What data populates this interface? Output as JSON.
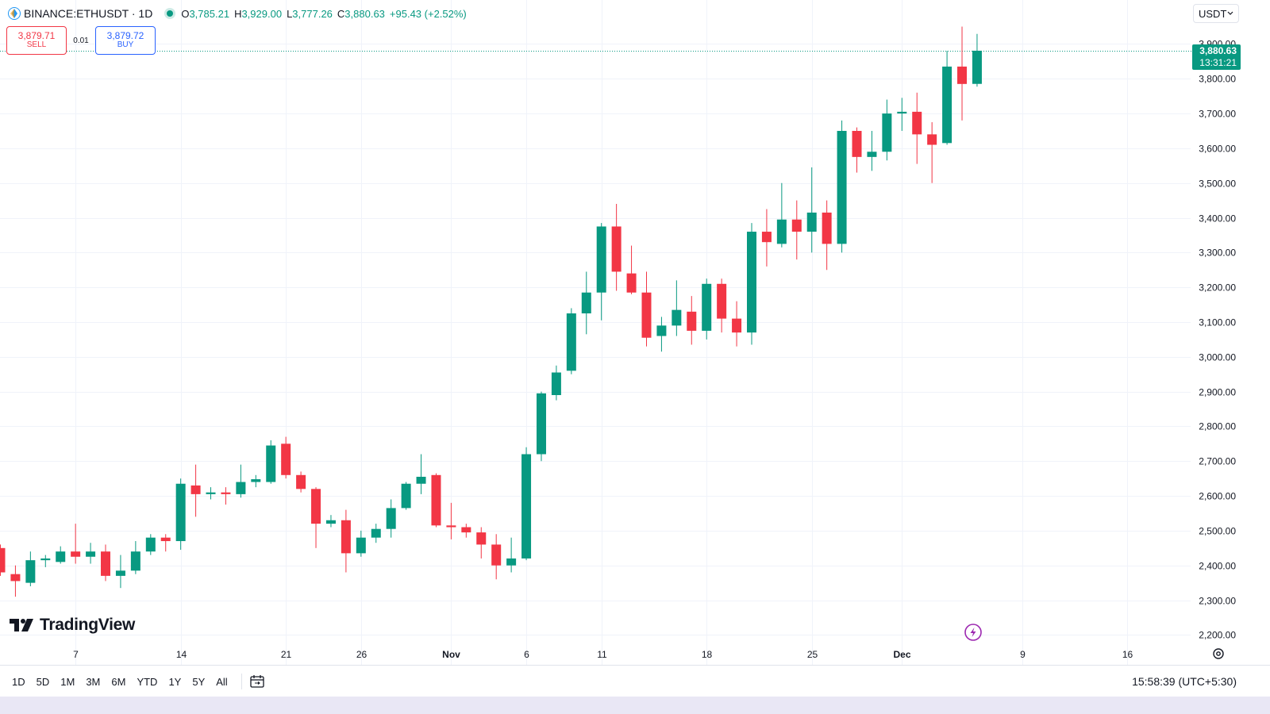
{
  "header": {
    "symbol": "BINANCE:ETHUSDT · 1D",
    "o_label": "O",
    "o_value": "3,785.21",
    "h_label": "H",
    "h_value": "3,929.00",
    "l_label": "L",
    "l_value": "3,777.26",
    "c_label": "C",
    "c_value": "3,880.63",
    "change": "+95.43 (+2.52%)"
  },
  "trade": {
    "sell_price": "3,879.71",
    "sell_label": "SELL",
    "spread": "0.01",
    "buy_price": "3,879.72",
    "buy_label": "BUY"
  },
  "currency_select": "USDT",
  "price_tag": {
    "price": "3,880.63",
    "countdown": "13:31:21"
  },
  "brand": "TradingView",
  "bottom": {
    "ranges": [
      "1D",
      "5D",
      "1M",
      "3M",
      "6M",
      "YTD",
      "1Y",
      "5Y",
      "All"
    ],
    "clock": "15:58:39 (UTC+5:30)"
  },
  "colors": {
    "up": "#089981",
    "down": "#f23645",
    "grid": "#f0f3fa",
    "text": "#131722",
    "accent": "#2962ff"
  },
  "icons": {
    "exchange": "binance-logo-icon",
    "status": "market-open-dot-icon",
    "calendar": "go-to-date-icon",
    "settings": "gear-icon",
    "lightning": "lightning-icon",
    "chevron": "chevron-down-icon"
  },
  "chart_data": {
    "type": "candlestick",
    "title": "BINANCE:ETHUSDT · 1D",
    "x_ticks": [
      {
        "label": "7",
        "index": 5
      },
      {
        "label": "14",
        "index": 12
      },
      {
        "label": "21",
        "index": 19
      },
      {
        "label": "26",
        "index": 24
      },
      {
        "label": "Nov",
        "index": 30
      },
      {
        "label": "6",
        "index": 35
      },
      {
        "label": "11",
        "index": 40
      },
      {
        "label": "18",
        "index": 47
      },
      {
        "label": "25",
        "index": 54
      },
      {
        "label": "Dec",
        "index": 60
      },
      {
        "label": "9",
        "index": 68
      },
      {
        "label": "16",
        "index": 75
      }
    ],
    "y_ticks": [
      2200,
      2300,
      2400,
      2500,
      2600,
      2700,
      2800,
      2900,
      3000,
      3100,
      3200,
      3300,
      3400,
      3500,
      3600,
      3700,
      3800,
      3900
    ],
    "y_tick_labels": [
      "2,200.00",
      "2,300.00",
      "2,400.00",
      "2,500.00",
      "2,600.00",
      "2,700.00",
      "2,800.00",
      "2,900.00",
      "3,000.00",
      "3,100.00",
      "3,200.00",
      "3,300.00",
      "3,400.00",
      "3,500.00",
      "3,600.00",
      "3,700.00",
      "3,800.00",
      "3,900.00"
    ],
    "ylim": [
      2170,
      3990
    ],
    "last_price": 3880.63,
    "candles": [
      {
        "o": 2450,
        "h": 2460,
        "l": 2370,
        "c": 2380
      },
      {
        "o": 2375,
        "h": 2400,
        "l": 2310,
        "c": 2355
      },
      {
        "o": 2350,
        "h": 2440,
        "l": 2340,
        "c": 2415
      },
      {
        "o": 2415,
        "h": 2430,
        "l": 2395,
        "c": 2420
      },
      {
        "o": 2410,
        "h": 2455,
        "l": 2405,
        "c": 2440
      },
      {
        "o": 2440,
        "h": 2520,
        "l": 2405,
        "c": 2425
      },
      {
        "o": 2425,
        "h": 2465,
        "l": 2405,
        "c": 2440
      },
      {
        "o": 2440,
        "h": 2460,
        "l": 2355,
        "c": 2370
      },
      {
        "o": 2370,
        "h": 2430,
        "l": 2335,
        "c": 2385
      },
      {
        "o": 2385,
        "h": 2470,
        "l": 2375,
        "c": 2440
      },
      {
        "o": 2440,
        "h": 2490,
        "l": 2430,
        "c": 2480
      },
      {
        "o": 2480,
        "h": 2490,
        "l": 2440,
        "c": 2470
      },
      {
        "o": 2470,
        "h": 2650,
        "l": 2445,
        "c": 2635
      },
      {
        "o": 2630,
        "h": 2690,
        "l": 2540,
        "c": 2605
      },
      {
        "o": 2605,
        "h": 2625,
        "l": 2590,
        "c": 2610
      },
      {
        "o": 2610,
        "h": 2625,
        "l": 2575,
        "c": 2605
      },
      {
        "o": 2605,
        "h": 2690,
        "l": 2595,
        "c": 2640
      },
      {
        "o": 2640,
        "h": 2660,
        "l": 2625,
        "c": 2648
      },
      {
        "o": 2640,
        "h": 2760,
        "l": 2635,
        "c": 2745
      },
      {
        "o": 2750,
        "h": 2770,
        "l": 2650,
        "c": 2660
      },
      {
        "o": 2660,
        "h": 2670,
        "l": 2610,
        "c": 2620
      },
      {
        "o": 2620,
        "h": 2625,
        "l": 2450,
        "c": 2520
      },
      {
        "o": 2520,
        "h": 2545,
        "l": 2510,
        "c": 2530
      },
      {
        "o": 2530,
        "h": 2560,
        "l": 2380,
        "c": 2435
      },
      {
        "o": 2435,
        "h": 2500,
        "l": 2425,
        "c": 2480
      },
      {
        "o": 2480,
        "h": 2520,
        "l": 2465,
        "c": 2505
      },
      {
        "o": 2505,
        "h": 2590,
        "l": 2480,
        "c": 2565
      },
      {
        "o": 2565,
        "h": 2640,
        "l": 2560,
        "c": 2635
      },
      {
        "o": 2635,
        "h": 2720,
        "l": 2605,
        "c": 2655
      },
      {
        "o": 2660,
        "h": 2665,
        "l": 2510,
        "c": 2515
      },
      {
        "o": 2515,
        "h": 2580,
        "l": 2475,
        "c": 2510
      },
      {
        "o": 2510,
        "h": 2520,
        "l": 2480,
        "c": 2495
      },
      {
        "o": 2495,
        "h": 2510,
        "l": 2420,
        "c": 2460
      },
      {
        "o": 2460,
        "h": 2490,
        "l": 2360,
        "c": 2400
      },
      {
        "o": 2400,
        "h": 2480,
        "l": 2380,
        "c": 2420
      },
      {
        "o": 2420,
        "h": 2740,
        "l": 2415,
        "c": 2720
      },
      {
        "o": 2720,
        "h": 2900,
        "l": 2700,
        "c": 2895
      },
      {
        "o": 2890,
        "h": 2975,
        "l": 2875,
        "c": 2955
      },
      {
        "o": 2960,
        "h": 3140,
        "l": 2950,
        "c": 3125
      },
      {
        "o": 3125,
        "h": 3245,
        "l": 3065,
        "c": 3185
      },
      {
        "o": 3185,
        "h": 3385,
        "l": 3105,
        "c": 3375
      },
      {
        "o": 3375,
        "h": 3440,
        "l": 3190,
        "c": 3245
      },
      {
        "o": 3240,
        "h": 3320,
        "l": 3180,
        "c": 3185
      },
      {
        "o": 3185,
        "h": 3245,
        "l": 3030,
        "c": 3055
      },
      {
        "o": 3060,
        "h": 3115,
        "l": 3015,
        "c": 3090
      },
      {
        "o": 3090,
        "h": 3220,
        "l": 3060,
        "c": 3135
      },
      {
        "o": 3130,
        "h": 3175,
        "l": 3035,
        "c": 3075
      },
      {
        "o": 3075,
        "h": 3225,
        "l": 3050,
        "c": 3210
      },
      {
        "o": 3210,
        "h": 3225,
        "l": 3070,
        "c": 3110
      },
      {
        "o": 3110,
        "h": 3160,
        "l": 3030,
        "c": 3070
      },
      {
        "o": 3070,
        "h": 3385,
        "l": 3035,
        "c": 3360
      },
      {
        "o": 3360,
        "h": 3425,
        "l": 3260,
        "c": 3330
      },
      {
        "o": 3325,
        "h": 3500,
        "l": 3315,
        "c": 3395
      },
      {
        "o": 3395,
        "h": 3450,
        "l": 3280,
        "c": 3360
      },
      {
        "o": 3360,
        "h": 3545,
        "l": 3300,
        "c": 3415
      },
      {
        "o": 3415,
        "h": 3450,
        "l": 3250,
        "c": 3325
      },
      {
        "o": 3325,
        "h": 3680,
        "l": 3300,
        "c": 3650
      },
      {
        "o": 3650,
        "h": 3660,
        "l": 3530,
        "c": 3575
      },
      {
        "o": 3575,
        "h": 3650,
        "l": 3535,
        "c": 3590
      },
      {
        "o": 3590,
        "h": 3740,
        "l": 3565,
        "c": 3700
      },
      {
        "o": 3700,
        "h": 3745,
        "l": 3650,
        "c": 3705
      },
      {
        "o": 3705,
        "h": 3760,
        "l": 3555,
        "c": 3640
      },
      {
        "o": 3640,
        "h": 3675,
        "l": 3500,
        "c": 3610
      },
      {
        "o": 3615,
        "h": 3880,
        "l": 3610,
        "c": 3835
      },
      {
        "o": 3835,
        "h": 3950,
        "l": 3680,
        "c": 3785
      },
      {
        "o": 3785.21,
        "h": 3929,
        "l": 3777.26,
        "c": 3880.63
      }
    ]
  }
}
